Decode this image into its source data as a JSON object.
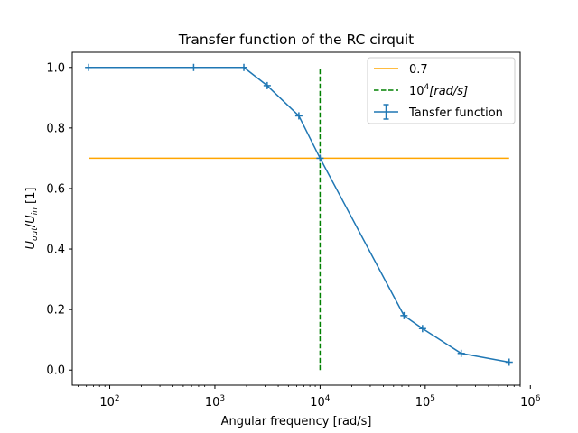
{
  "chart_data": {
    "type": "line",
    "title": "Transfer function of the RC cirquit",
    "xlabel": "Angular frequency [rad/s]",
    "ylabel": {
      "main_a": "U",
      "sub_a": "out",
      "slash": "/",
      "main_b": "U",
      "sub_b": "in",
      "unit": " [1]"
    },
    "xscale": "log",
    "xlim": [
      44,
      800000
    ],
    "ylim": [
      -0.05,
      1.05
    ],
    "x_ticks": [
      {
        "value": 100,
        "base": "10",
        "exp": "2"
      },
      {
        "value": 1000,
        "base": "10",
        "exp": "3"
      },
      {
        "value": 10000,
        "base": "10",
        "exp": "4"
      },
      {
        "value": 100000,
        "base": "10",
        "exp": "5"
      },
      {
        "value": 1000000,
        "base": "10",
        "exp": "6"
      }
    ],
    "y_ticks": [
      {
        "value": 0.0,
        "label": "0.0"
      },
      {
        "value": 0.2,
        "label": "0.2"
      },
      {
        "value": 0.4,
        "label": "0.4"
      },
      {
        "value": 0.6,
        "label": "0.6"
      },
      {
        "value": 0.8,
        "label": "0.8"
      },
      {
        "value": 1.0,
        "label": "1.0"
      }
    ],
    "series": [
      {
        "name": "Tansfer function",
        "kind": "errorbar",
        "color": "#1f77b4",
        "x": [
          63,
          628,
          1885,
          3142,
          6283,
          10000,
          62832,
          94248,
          219911,
          628319
        ],
        "y": [
          1.0,
          1.0,
          1.0,
          0.94,
          0.84,
          0.7,
          0.18,
          0.137,
          0.055,
          0.026
        ]
      }
    ],
    "reference_lines": [
      {
        "name": "0.7",
        "orientation": "horizontal",
        "value": 0.7,
        "from": 63,
        "to": 628319,
        "color": "#ffa500",
        "style": "solid"
      },
      {
        "name_base": "10",
        "name_exp": "4",
        "name_rest": "[rad/s]",
        "orientation": "vertical",
        "value": 10000,
        "from": 0.0,
        "to": 1.0,
        "color": "#008000",
        "style": "dashed"
      }
    ],
    "legend": {
      "placement": "top-right",
      "entries": [
        {
          "label": "0.7",
          "color": "#ffa500",
          "style": "solid"
        },
        {
          "label_base": "10",
          "label_exp": "4",
          "label_rest": "[rad/s]",
          "color": "#008000",
          "style": "dashed"
        },
        {
          "label": "Tansfer function",
          "color": "#1f77b4",
          "style": "errorbar"
        }
      ]
    },
    "grid": false
  }
}
